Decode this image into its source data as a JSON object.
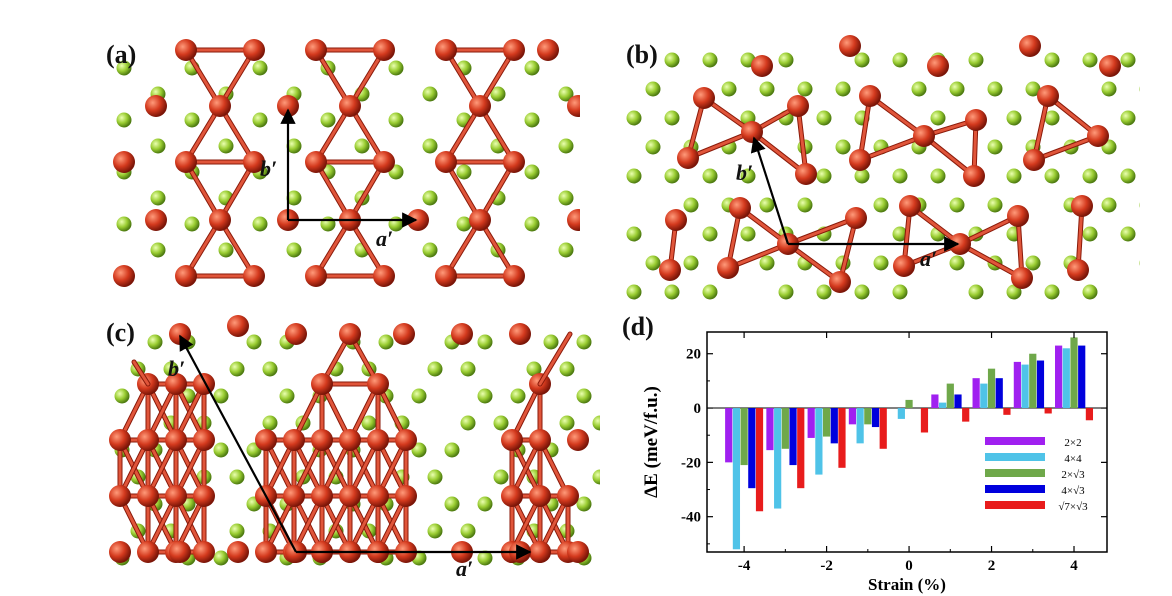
{
  "panels": {
    "a": {
      "label": "(a)",
      "vec_a": "a′",
      "vec_b": "b′"
    },
    "b": {
      "label": "(b)",
      "vec_a": "a′",
      "vec_b": "b′"
    },
    "c": {
      "label": "(c)",
      "vec_a": "a′",
      "vec_b": "b′"
    },
    "d": {
      "label": "(d)"
    }
  },
  "colors": {
    "red_atom": "#d43a1e",
    "green_atom": "#9acd32",
    "bond": "#e0553a"
  },
  "chart_data": {
    "type": "bar",
    "xlabel": "Strain (%)",
    "ylabel": "ΔE (meV/f.u.)",
    "x": [
      -4,
      -3,
      -2,
      -1,
      0,
      1,
      2,
      3,
      4
    ],
    "xticks": [
      "-4",
      "-2",
      "0",
      "2",
      "4"
    ],
    "xtick_values": [
      -4,
      -2,
      0,
      2,
      4
    ],
    "yticks": [
      "-40",
      "-20",
      "0",
      "20"
    ],
    "ytick_values": [
      -40,
      -20,
      0,
      20
    ],
    "xlim": [
      -4.9,
      4.8
    ],
    "ylim": [
      -53,
      28
    ],
    "legend_position": "lower-right",
    "series": [
      {
        "name": "2×2",
        "color": "#a020f0",
        "values": [
          -20,
          -15.5,
          -11,
          -6,
          0,
          5,
          11,
          17,
          23
        ]
      },
      {
        "name": "4×4",
        "color": "#4fc3e8",
        "values": [
          -52,
          -37,
          -24.5,
          -13,
          -4,
          2,
          9,
          16,
          22
        ]
      },
      {
        "name": "2×√3",
        "color": "#6fa84a",
        "values": [
          -21,
          -15,
          -10.5,
          -6,
          3,
          9,
          14.5,
          20,
          26
        ]
      },
      {
        "name": "4×√3",
        "color": "#0000dd",
        "values": [
          -29.5,
          -21,
          -13,
          -7,
          0,
          5,
          11,
          17.5,
          23
        ]
      },
      {
        "name": "√7×√3",
        "color": "#e81c1c",
        "values": [
          -38,
          -29.5,
          -22,
          -15,
          -9,
          -5,
          -2.5,
          -2,
          -4.5
        ]
      }
    ]
  }
}
